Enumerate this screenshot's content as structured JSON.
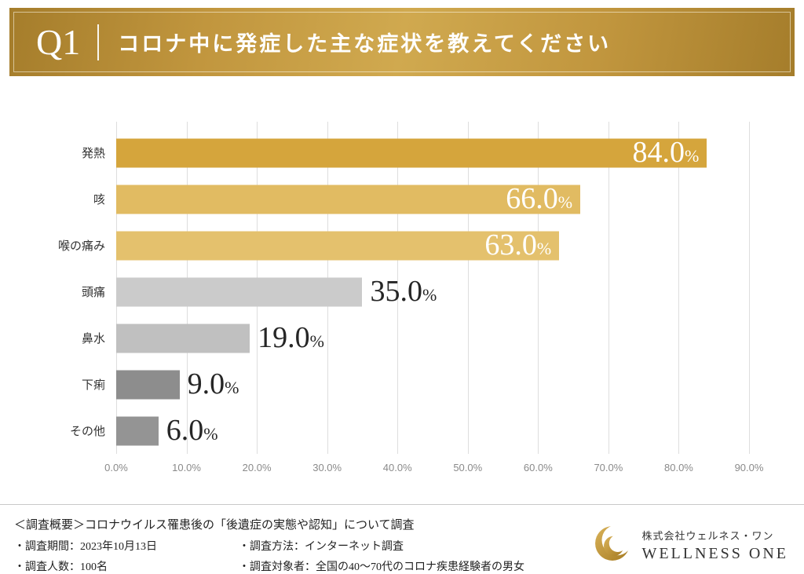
{
  "header": {
    "q_label": "Q1",
    "title": "コロナ中に発症した主な症状を教えてください"
  },
  "chart_data": {
    "type": "bar",
    "orientation": "horizontal",
    "categories": [
      "発熱",
      "咳",
      "喉の痛み",
      "頭痛",
      "鼻水",
      "下痢",
      "その他"
    ],
    "values": [
      84.0,
      66.0,
      63.0,
      35.0,
      19.0,
      9.0,
      6.0
    ],
    "value_suffix": "%",
    "xlim": [
      0,
      90
    ],
    "x_ticks": [
      "0.0%",
      "10.0%",
      "20.0%",
      "30.0%",
      "40.0%",
      "50.0%",
      "60.0%",
      "70.0%",
      "80.0%",
      "90.0%"
    ],
    "bar_colors": [
      "#D5A53C",
      "#E1BB62",
      "#E4C16D",
      "#CBCBCB",
      "#C0C0C0",
      "#8D8D8D",
      "#949494"
    ],
    "label_inside": [
      true,
      true,
      true,
      false,
      false,
      false,
      false
    ],
    "grid": true,
    "legend": "none"
  },
  "footer": {
    "summary": "＜調査概要＞コロナウイルス罹患後の「後遺症の実態や認知」について調査",
    "items_left": [
      "・調査期間：2023年10月13日",
      "・調査人数：100名"
    ],
    "items_right": [
      "・調査方法：インターネット調査",
      "・調査対象者：全国の40〜70代のコロナ疾患経験者の男女"
    ],
    "logo": {
      "company_jp": "株式会社ウェルネス・ワン",
      "company_en": "WELLNESS ONE"
    }
  },
  "colors": {
    "banner_gold": "#C1963E",
    "gold_dark": "#A57D2B",
    "gold_light": "#D0A94F",
    "grid_gray": "#DEDEDE"
  }
}
